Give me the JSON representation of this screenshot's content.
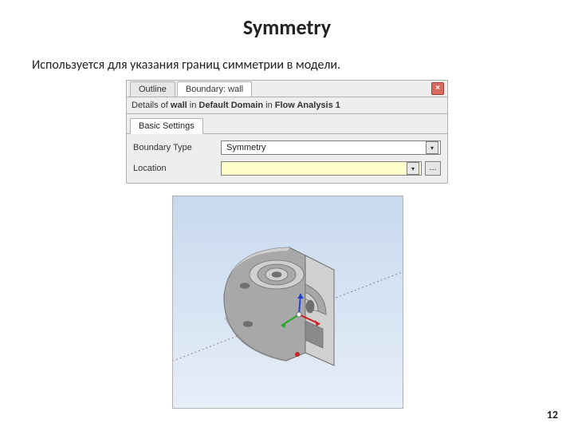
{
  "title": "Symmetry",
  "subtitle": "Используется для указания границ симметрии в модели.",
  "page_number": "12",
  "dialog": {
    "tabs": {
      "outline": "Outline",
      "boundary": "Boundary: wall"
    },
    "close_glyph": "×",
    "details_prefix": "Details of ",
    "details_item": "wall",
    "details_mid": " in ",
    "details_domain": "Default Domain",
    "details_mid2": " in ",
    "details_analysis": "Flow Analysis 1",
    "subtab": "Basic Settings",
    "rows": {
      "boundary_type_label": "Boundary Type",
      "boundary_type_value": "Symmetry",
      "location_label": "Location",
      "location_value": "",
      "ellipsis": "..."
    },
    "dropdown_arrow": "▾"
  },
  "viewport": {
    "sky_top": "#c8d9ee",
    "sky_bottom": "#e6eef8",
    "part_light": "#d0d0d0",
    "part_mid": "#a8a8a8",
    "part_dark": "#8a8a8a",
    "part_edge": "#6e6e6e",
    "hole_dark": "#707070",
    "triad": {
      "x": "#cc2222",
      "y": "#22aa22",
      "z": "#2244cc"
    },
    "axis_line": "#888888"
  }
}
